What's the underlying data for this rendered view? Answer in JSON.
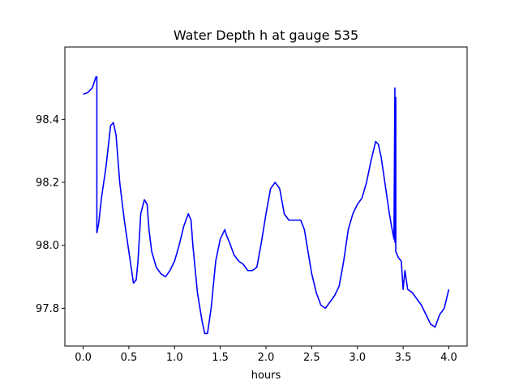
{
  "chart_data": {
    "type": "line",
    "title": "Water Depth h at gauge 535",
    "xlabel": "hours",
    "ylabel": "",
    "xlim": [
      -0.2,
      4.2
    ],
    "ylim": [
      97.68,
      98.63
    ],
    "x_ticks": [
      0.0,
      0.5,
      1.0,
      1.5,
      2.0,
      2.5,
      3.0,
      3.5,
      4.0
    ],
    "x_tick_labels": [
      "0.0",
      "0.5",
      "1.0",
      "1.5",
      "2.0",
      "2.5",
      "3.0",
      "3.5",
      "4.0"
    ],
    "y_ticks": [
      97.8,
      98.0,
      98.2,
      98.4
    ],
    "y_tick_labels": [
      "97.8",
      "98.0",
      "98.2",
      "98.4"
    ],
    "grid": false,
    "legend": "none",
    "series": [
      {
        "color": "#0000ff",
        "x": [
          0.0,
          0.05,
          0.1,
          0.14,
          0.15,
          0.15,
          0.17,
          0.2,
          0.25,
          0.3,
          0.33,
          0.36,
          0.4,
          0.45,
          0.5,
          0.55,
          0.58,
          0.6,
          0.63,
          0.67,
          0.7,
          0.72,
          0.75,
          0.8,
          0.85,
          0.9,
          0.95,
          1.0,
          1.05,
          1.1,
          1.15,
          1.18,
          1.2,
          1.25,
          1.3,
          1.33,
          1.36,
          1.4,
          1.45,
          1.5,
          1.55,
          1.57,
          1.6,
          1.65,
          1.7,
          1.75,
          1.8,
          1.85,
          1.9,
          1.95,
          2.0,
          2.05,
          2.1,
          2.15,
          2.2,
          2.25,
          2.3,
          2.35,
          2.38,
          2.42,
          2.46,
          2.5,
          2.55,
          2.6,
          2.65,
          2.7,
          2.75,
          2.8,
          2.85,
          2.9,
          2.95,
          3.0,
          3.05,
          3.1,
          3.15,
          3.2,
          3.23,
          3.26,
          3.3,
          3.35,
          3.38,
          3.4,
          3.41,
          3.41,
          3.42,
          3.42,
          3.45,
          3.48,
          3.5,
          3.52,
          3.55,
          3.6,
          3.65,
          3.7,
          3.75,
          3.8,
          3.85,
          3.9,
          3.95,
          4.0
        ],
        "y": [
          98.48,
          98.485,
          98.5,
          98.535,
          98.535,
          98.04,
          98.07,
          98.15,
          98.25,
          98.38,
          98.39,
          98.35,
          98.2,
          98.08,
          97.98,
          97.88,
          97.89,
          97.95,
          98.1,
          98.145,
          98.13,
          98.05,
          97.98,
          97.93,
          97.91,
          97.9,
          97.92,
          97.95,
          98.0,
          98.06,
          98.1,
          98.08,
          98.0,
          97.85,
          97.76,
          97.72,
          97.72,
          97.8,
          97.95,
          98.02,
          98.05,
          98.03,
          98.01,
          97.97,
          97.95,
          97.94,
          97.92,
          97.92,
          97.93,
          98.01,
          98.1,
          98.18,
          98.2,
          98.18,
          98.1,
          98.08,
          98.08,
          98.08,
          98.08,
          98.05,
          97.98,
          97.91,
          97.85,
          97.81,
          97.8,
          97.82,
          97.84,
          97.87,
          97.95,
          98.05,
          98.1,
          98.13,
          98.15,
          98.2,
          98.27,
          98.33,
          98.32,
          98.28,
          98.2,
          98.1,
          98.05,
          98.02,
          98.5,
          98.01,
          98.47,
          97.98,
          97.96,
          97.95,
          97.86,
          97.92,
          97.86,
          97.85,
          97.83,
          97.81,
          97.78,
          97.75,
          97.74,
          97.78,
          97.8,
          97.86
        ]
      }
    ]
  }
}
